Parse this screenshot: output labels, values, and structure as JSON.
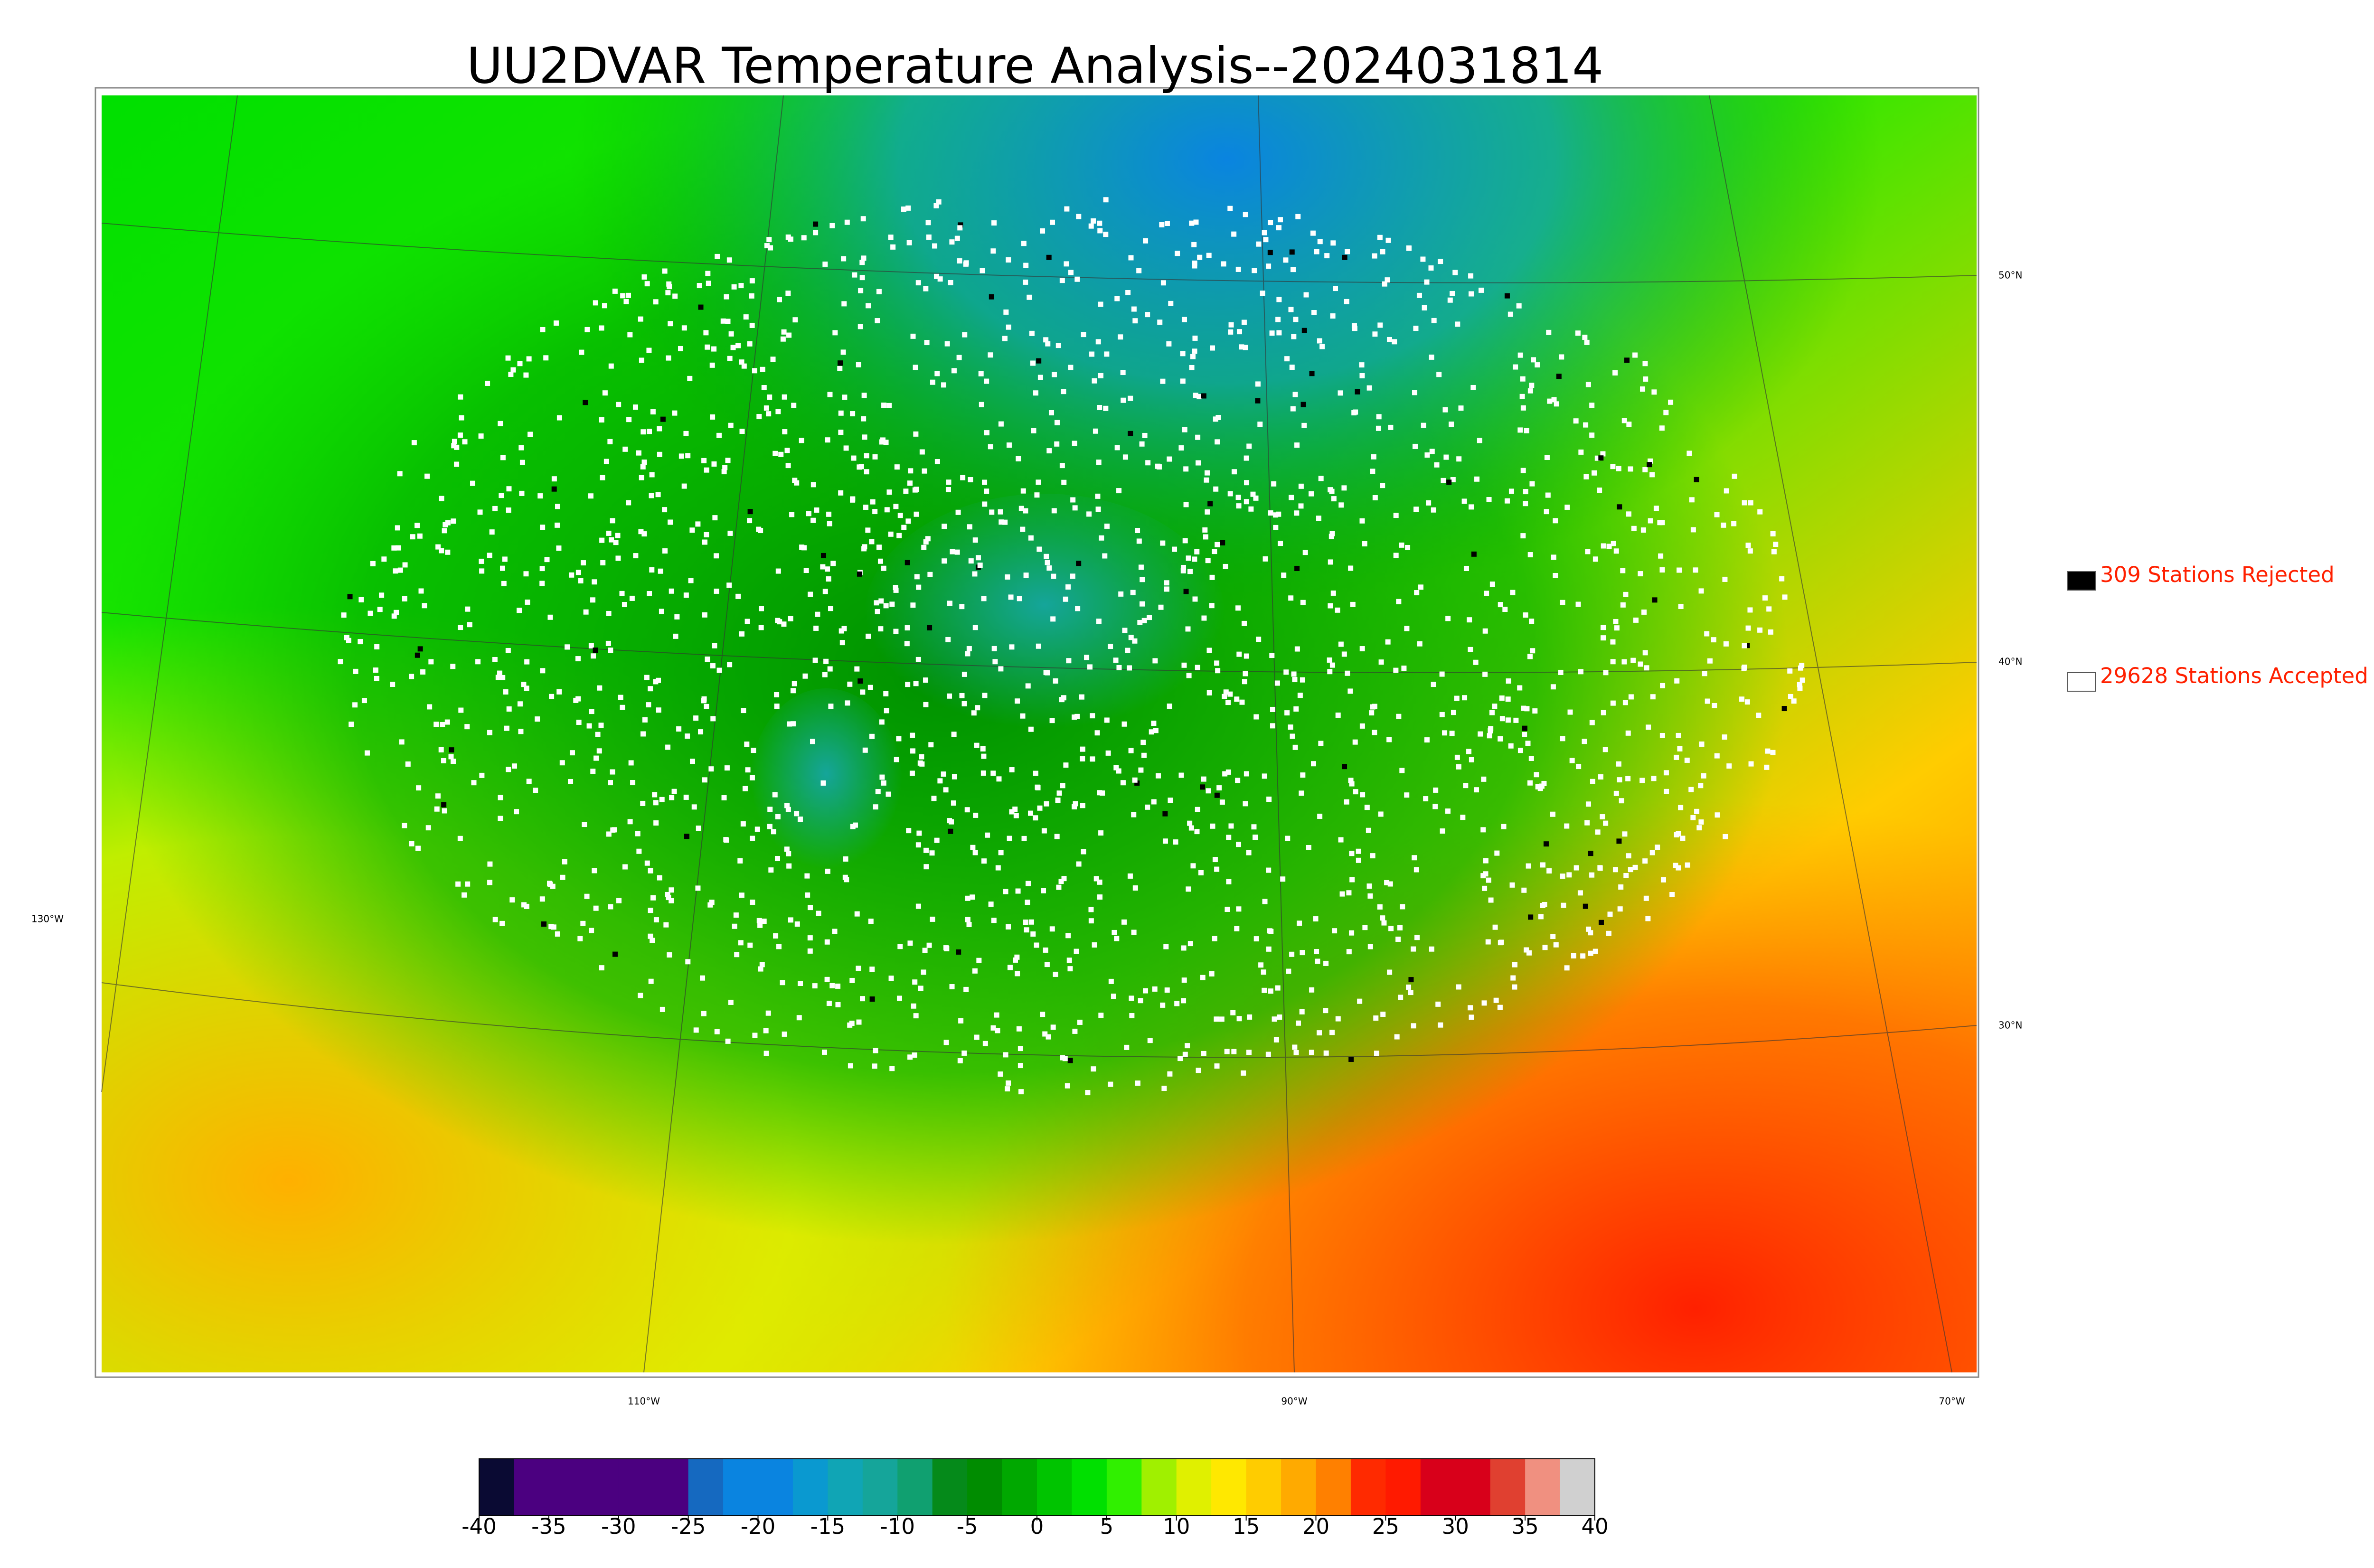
{
  "title": "UU2DVAR Temperature Analysis--2024031814",
  "legend": [
    {
      "label": "309 Stations Rejected",
      "color": "#000000"
    },
    {
      "label": "29628 Stations Accepted",
      "color": "#ffffff"
    }
  ],
  "latitude_labels": [
    "50°N",
    "40°N",
    "30°N"
  ],
  "longitude_labels": [
    "130°W",
    "110°W",
    "90°W",
    "70°W"
  ],
  "colorbar": {
    "ticks": [
      -40,
      -35,
      -30,
      -25,
      -20,
      -15,
      -10,
      -5,
      0,
      5,
      10,
      15,
      20,
      25,
      30,
      35,
      40
    ],
    "colors": [
      "#0a0a33",
      "#4b0080",
      "#4b0080",
      "#4b0080",
      "#4b0080",
      "#4b0080",
      "#1569c0",
      "#0a84e0",
      "#0a84e0",
      "#0a99d0",
      "#10a5b5",
      "#15a59a",
      "#10a070",
      "#058a1a",
      "#008c00",
      "#00a800",
      "#00c400",
      "#00e000",
      "#30f000",
      "#a0f000",
      "#e0f000",
      "#ffe800",
      "#ffcc00",
      "#ffaa00",
      "#ff8000",
      "#ff2a00",
      "#ff1a00",
      "#d8001a",
      "#d8001a",
      "#e04030",
      "#f09080",
      "#d0d0d0"
    ]
  }
}
